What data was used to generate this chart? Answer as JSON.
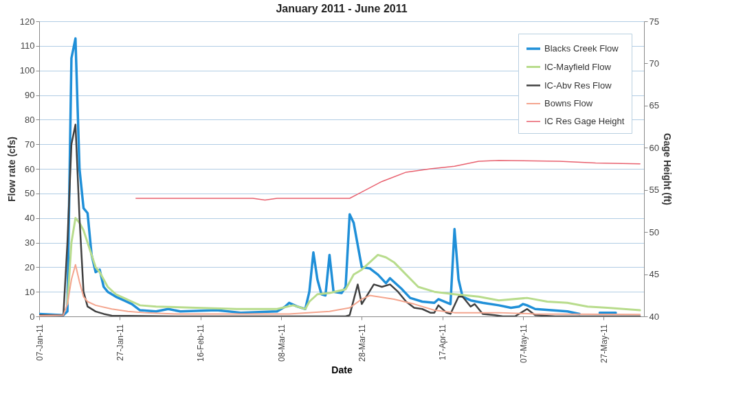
{
  "chart_data": {
    "type": "line",
    "title": "January 2011 - June 2011",
    "xlabel": "Date",
    "ylabel": "Flow rate (cfs)",
    "y2label": "Gage Height (ft)",
    "xlim": [
      "2011-01-07",
      "2011-06-06"
    ],
    "xticks": [
      {
        "value": "2011-01-07",
        "label": "07-Jan-11"
      },
      {
        "value": "2011-01-27",
        "label": "27-Jan-11"
      },
      {
        "value": "2011-02-16",
        "label": "16-Feb-11"
      },
      {
        "value": "2011-03-08",
        "label": "08-Mar-11"
      },
      {
        "value": "2011-03-28",
        "label": "28-Mar-11"
      },
      {
        "value": "2011-04-17",
        "label": "17-Apr-11"
      },
      {
        "value": "2011-05-07",
        "label": "07-May-11"
      },
      {
        "value": "2011-05-27",
        "label": "27-May-11"
      }
    ],
    "ylim": [
      0,
      120
    ],
    "yticks": [
      0,
      10,
      20,
      30,
      40,
      50,
      60,
      70,
      80,
      90,
      100,
      110,
      120
    ],
    "y2lim": [
      40,
      75
    ],
    "y2ticks": [
      40,
      45,
      50,
      55,
      60,
      65,
      70,
      75
    ],
    "grid": "y",
    "legend": "top right",
    "series": [
      {
        "name": "Blacks Creek Flow",
        "color": "#1f8fd8",
        "x": [
          "2011-01-07",
          "2011-01-13",
          "2011-01-14",
          "2011-01-15",
          "2011-01-16",
          "2011-01-17",
          "2011-01-18",
          "2011-01-19",
          "2011-01-20",
          "2011-01-21",
          "2011-01-22",
          "2011-01-23",
          "2011-01-24",
          "2011-01-26",
          "2011-01-28",
          "2011-01-30",
          "2011-02-01",
          "2011-02-05",
          "2011-02-08",
          "2011-02-11",
          "2011-02-20",
          "2011-02-26",
          "2011-03-07",
          "2011-03-09",
          "2011-03-10",
          "2011-03-12",
          "2011-03-14",
          "2011-03-15",
          "2011-03-16",
          "2011-03-17",
          "2011-03-18",
          "2011-03-19",
          "2011-03-20",
          "2011-03-21",
          "2011-03-23",
          "2011-03-24",
          "2011-03-25",
          "2011-03-26",
          "2011-03-28",
          "2011-03-30",
          "2011-04-01",
          "2011-04-03",
          "2011-04-04",
          "2011-04-07",
          "2011-04-09",
          "2011-04-12",
          "2011-04-15",
          "2011-04-16",
          "2011-04-19",
          "2011-04-20",
          "2011-04-21",
          "2011-04-22",
          "2011-04-24",
          "2011-04-27",
          "2011-05-01",
          "2011-05-04",
          "2011-05-06",
          "2011-05-07",
          "2011-05-08",
          "2011-05-10",
          "2011-05-14",
          "2011-05-18",
          "2011-05-21",
          "2011-05-22",
          "2011-05-26",
          "2011-05-30"
        ],
        "values": [
          1,
          0.5,
          2,
          105,
          113,
          60,
          44,
          42,
          25,
          18,
          19,
          12,
          10,
          8,
          6.5,
          5,
          2.5,
          2,
          3,
          2,
          2.5,
          1.5,
          2,
          4,
          5.5,
          4,
          3,
          10,
          26,
          15,
          9,
          8.5,
          25,
          10,
          9.5,
          12,
          41.5,
          38,
          20,
          19.5,
          17,
          13.5,
          15.5,
          11,
          7.5,
          6,
          5.5,
          7,
          5,
          35.5,
          15,
          8,
          6.5,
          5.5,
          4.5,
          3.5,
          4,
          5,
          4.5,
          3,
          2.5,
          2,
          1,
          null,
          1.5,
          1.5
        ]
      },
      {
        "name": "IC-Mayfield Flow",
        "color": "#b8dc8c",
        "x": [
          "2011-01-14",
          "2011-01-15",
          "2011-01-16",
          "2011-01-17",
          "2011-01-18",
          "2011-01-19",
          "2011-01-20",
          "2011-01-21",
          "2011-01-22",
          "2011-01-24",
          "2011-01-26",
          "2011-01-28",
          "2011-01-30",
          "2011-02-01",
          "2011-02-05",
          "2011-02-15",
          "2011-02-25",
          "2011-03-07",
          "2011-03-11",
          "2011-03-14",
          "2011-03-15",
          "2011-03-17",
          "2011-03-20",
          "2011-03-24",
          "2011-03-26",
          "2011-03-28",
          "2011-04-01",
          "2011-04-03",
          "2011-04-05",
          "2011-04-08",
          "2011-04-11",
          "2011-04-15",
          "2011-04-20",
          "2011-04-26",
          "2011-05-01",
          "2011-05-08",
          "2011-05-13",
          "2011-05-18",
          "2011-05-23",
          "2011-05-28",
          "2011-06-05"
        ],
        "values": [
          5,
          30,
          40,
          38,
          35,
          30,
          25,
          20,
          18,
          12,
          9,
          7.5,
          6,
          4.5,
          4,
          3.5,
          3,
          3,
          4.5,
          3,
          6,
          9,
          9.5,
          11,
          17,
          19,
          25,
          24,
          22,
          17,
          12,
          10,
          9,
          8,
          6.5,
          7.5,
          6,
          5.5,
          4,
          3.5,
          2.5
        ]
      },
      {
        "name": "IC-Abv Res Flow",
        "color": "#404040",
        "x": [
          "2011-01-07",
          "2011-01-13",
          "2011-01-14",
          "2011-01-15",
          "2011-01-16",
          "2011-01-17",
          "2011-01-18",
          "2011-01-19",
          "2011-01-21",
          "2011-01-23",
          "2011-01-25",
          "2011-02-10",
          "2011-03-10",
          "2011-03-24",
          "2011-03-25",
          "2011-03-27",
          "2011-03-28",
          "2011-03-31",
          "2011-04-02",
          "2011-04-04",
          "2011-04-06",
          "2011-04-08",
          "2011-04-10",
          "2011-04-12",
          "2011-04-14",
          "2011-04-15",
          "2011-04-16",
          "2011-04-18",
          "2011-04-19",
          "2011-04-21",
          "2011-04-22",
          "2011-04-24",
          "2011-04-25",
          "2011-04-27",
          "2011-04-30",
          "2011-05-02",
          "2011-05-05",
          "2011-05-08",
          "2011-05-10",
          "2011-05-15",
          "2011-06-05"
        ],
        "values": [
          0.5,
          0.5,
          30,
          70,
          78,
          40,
          10,
          4,
          2,
          1,
          0.3,
          0,
          0,
          0,
          0.5,
          13,
          5,
          13,
          12,
          13,
          10,
          6,
          3.5,
          3,
          1.5,
          1.5,
          4.5,
          1.5,
          1,
          8,
          8,
          4,
          5,
          1,
          0.5,
          0,
          0,
          3,
          0.5,
          0,
          0
        ]
      },
      {
        "name": "Bowns Flow",
        "color": "#f4a58e",
        "x": [
          "2011-01-07",
          "2011-01-13",
          "2011-01-14",
          "2011-01-15",
          "2011-01-16",
          "2011-01-17",
          "2011-01-18",
          "2011-01-19",
          "2011-01-21",
          "2011-01-25",
          "2011-01-29",
          "2011-02-02",
          "2011-02-10",
          "2011-03-10",
          "2011-03-20",
          "2011-03-25",
          "2011-03-28",
          "2011-03-30",
          "2011-04-05",
          "2011-04-10",
          "2011-04-15",
          "2011-04-20",
          "2011-05-01",
          "2011-05-10",
          "2011-06-05"
        ],
        "values": [
          0.3,
          0.5,
          5,
          15,
          21,
          14,
          8,
          6,
          4.5,
          3,
          2,
          1.5,
          1,
          1,
          2,
          3.5,
          7,
          8.5,
          7,
          5,
          2.5,
          1.5,
          1.5,
          1,
          0.8
        ]
      },
      {
        "name": "IC Res Gage Height",
        "color": "#e8606e",
        "axis": "y2",
        "x": [
          "2011-01-31",
          "2011-02-15",
          "2011-03-01",
          "2011-03-04",
          "2011-03-07",
          "2011-03-25",
          "2011-03-27",
          "2011-04-02",
          "2011-04-08",
          "2011-04-14",
          "2011-04-20",
          "2011-04-26",
          "2011-05-01",
          "2011-05-16",
          "2011-05-25",
          "2011-06-05"
        ],
        "values": [
          54,
          54,
          54,
          53.8,
          54,
          54,
          54.5,
          56,
          57.1,
          57.5,
          57.8,
          58.4,
          58.5,
          58.4,
          58.2,
          58.1
        ]
      }
    ]
  }
}
